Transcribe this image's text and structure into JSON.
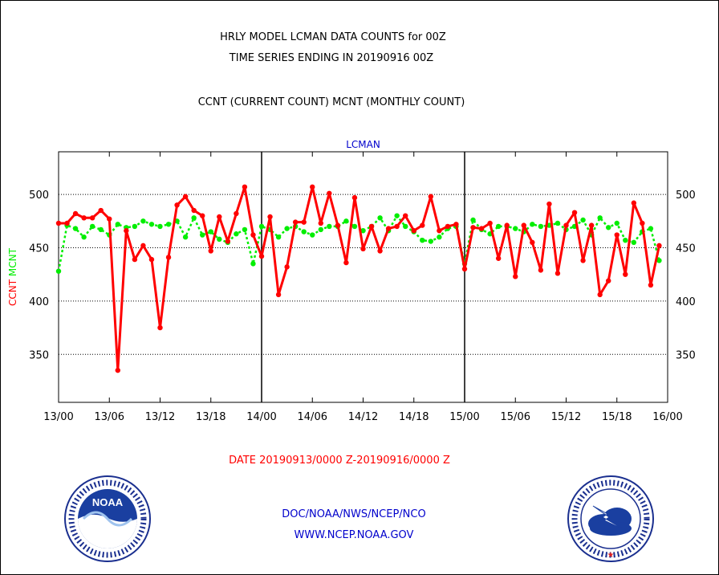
{
  "title_lines": [
    "HRLY MODEL LCMAN DATA COUNTS for 00Z",
    "TIME SERIES ENDING IN 20190916 00Z"
  ],
  "subtitle": "CCNT (CURRENT COUNT) MCNT (MONTHLY COUNT)",
  "date_range": "DATE 20190913/0000 Z-20190916/0000 Z",
  "footer": {
    "org": "DOC/NOAA/NWS/NCEP/NCO",
    "url": "WWW.NCEP.NOAA.GOV"
  },
  "logos": {
    "noaa": {
      "label": "NOAA",
      "ring_text": "NATIONAL OCEANIC AND ATMOSPHERIC ADMINISTRATION U.S. DEPARTMENT OF COMMERCE"
    },
    "nws": {
      "ring_text": "NATIONAL WEATHER SERVICE"
    }
  },
  "colors": {
    "ccnt": "#ff0000",
    "mcnt": "#00ee00",
    "panel_title": "#0000cc",
    "date": "#ff0000",
    "footer": "#0000cc"
  },
  "chart_data": {
    "type": "line",
    "panel_title": "LCMAN",
    "ylabel_left": [
      {
        "text": "CCNT",
        "color": "#ff0000"
      },
      {
        "text": "MCNT",
        "color": "#00ee00"
      }
    ],
    "xticks": [
      "13/00",
      "13/06",
      "13/12",
      "13/18",
      "14/00",
      "14/06",
      "14/12",
      "14/18",
      "15/00",
      "15/06",
      "15/12",
      "15/18",
      "16/00"
    ],
    "x_major_divisions": [
      "14/00",
      "15/00"
    ],
    "yticks": [
      350,
      400,
      450,
      500
    ],
    "ylim": [
      305,
      540
    ],
    "xlim_hours": [
      0,
      72
    ],
    "grid": "horizontal dotted",
    "series": [
      {
        "name": "CCNT",
        "color": "#ff0000",
        "style": "solid",
        "values": [
          473,
          473,
          482,
          478,
          478,
          485,
          477,
          335,
          466,
          439,
          452,
          439,
          375,
          441,
          490,
          498,
          485,
          480,
          447,
          479,
          456,
          482,
          507,
          462,
          442,
          479,
          406,
          432,
          474,
          474,
          507,
          473,
          501,
          471,
          436,
          497,
          449,
          470,
          447,
          468,
          470,
          480,
          466,
          471,
          498,
          466,
          470,
          472,
          430,
          469,
          468,
          473,
          440,
          471,
          423,
          471,
          455,
          429,
          491,
          426,
          471,
          483,
          438,
          471,
          406,
          419,
          462,
          425,
          492,
          473,
          415,
          452
        ]
      },
      {
        "name": "MCNT",
        "color": "#00ee00",
        "style": "dotted",
        "values": [
          428,
          471,
          468,
          460,
          470,
          467,
          462,
          472,
          469,
          470,
          475,
          472,
          470,
          472,
          475,
          460,
          478,
          462,
          465,
          458,
          455,
          463,
          467,
          435,
          470,
          467,
          460,
          468,
          470,
          465,
          462,
          467,
          470,
          470,
          475,
          470,
          466,
          470,
          478,
          466,
          480,
          470,
          465,
          457,
          456,
          460,
          468,
          470,
          435,
          476,
          467,
          463,
          470,
          470,
          468,
          465,
          472,
          470,
          471,
          473,
          467,
          470,
          476,
          462,
          478,
          469,
          473,
          457,
          455,
          465,
          468,
          438
        ]
      }
    ]
  }
}
